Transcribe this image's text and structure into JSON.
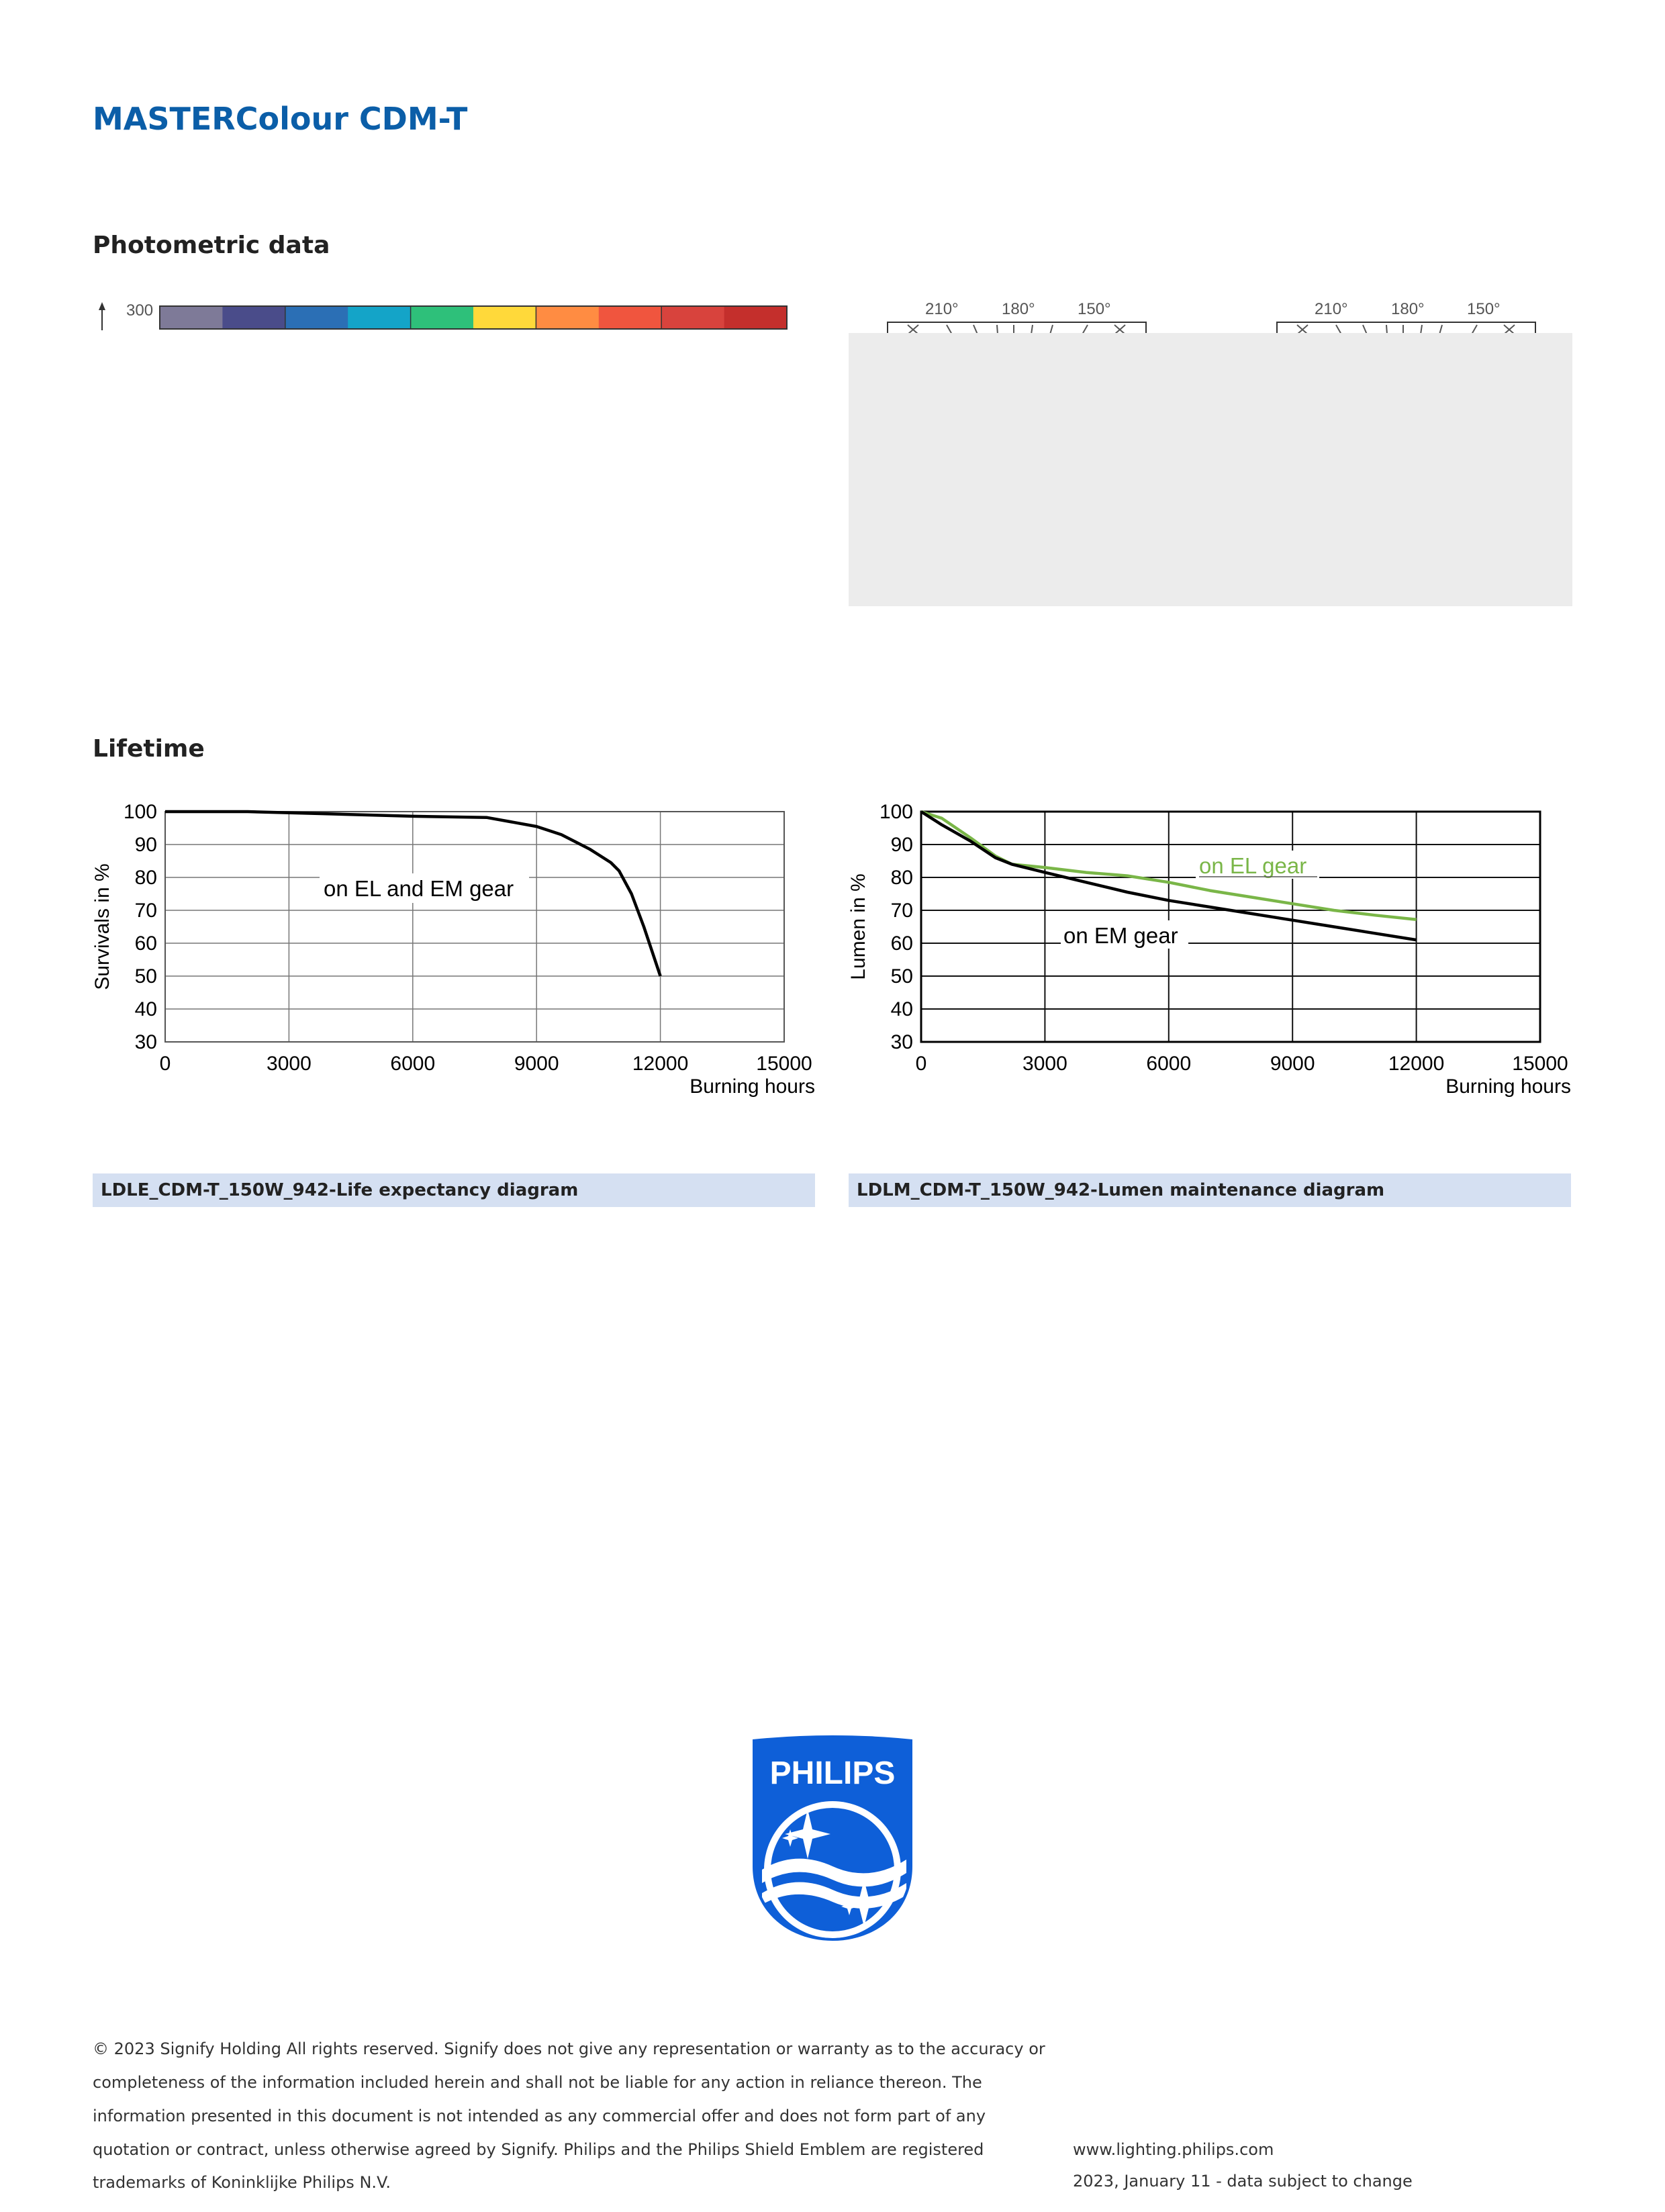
{
  "header": {
    "title": "MASTERColour CDM-T"
  },
  "photometric": {
    "title": "Photometric data",
    "colorbar": {
      "label": "300",
      "colors": [
        "#7e7a98",
        "#4a4c8a",
        "#2b6fb5",
        "#14a4c8",
        "#2ec07a",
        "#ffd93a",
        "#ff8c42",
        "#f0553e",
        "#d8433d",
        "#c42f2c"
      ]
    },
    "polar_left": {
      "angles": [
        "210°",
        "180°",
        "150°"
      ]
    },
    "polar_right": {
      "angles": [
        "210°",
        "180°",
        "150°"
      ]
    }
  },
  "lifetime": {
    "title": "Lifetime",
    "caption_left": "LDLE_CDM-T_150W_942-Life expectancy diagram",
    "caption_right": "LDLM_CDM-T_150W_942-Lumen maintenance diagram"
  },
  "chart_data": [
    {
      "type": "line",
      "ylabel": "Survivals in %",
      "xlabel": "Burning hours",
      "xlim": [
        0,
        15000
      ],
      "ylim": [
        30,
        100
      ],
      "xticks": [
        "0",
        "3000",
        "6000",
        "9000",
        "12000",
        "15000"
      ],
      "yticks": [
        "100",
        "90",
        "80",
        "70",
        "60",
        "50",
        "40",
        "30"
      ],
      "grid": true,
      "annotation": "on EL and EM gear",
      "series": [
        {
          "color": "#000000",
          "x": [
            0,
            2000,
            4000,
            6000,
            7800,
            9000,
            9600,
            10300,
            10800,
            11000,
            11300,
            11600,
            12000
          ],
          "y": [
            100,
            100,
            99.3,
            98.6,
            98.2,
            95.5,
            93,
            88.5,
            84.5,
            82,
            75,
            65,
            50
          ]
        }
      ]
    },
    {
      "type": "line",
      "ylabel": "Lumen in %",
      "xlabel": "Burning hours",
      "xlim": [
        0,
        15000
      ],
      "ylim": [
        30,
        100
      ],
      "xticks": [
        "0",
        "3000",
        "6000",
        "9000",
        "12000",
        "15000"
      ],
      "yticks": [
        "100",
        "90",
        "80",
        "70",
        "60",
        "50",
        "40",
        "30"
      ],
      "grid": true,
      "series": [
        {
          "name": "on EL gear",
          "color": "#7ab648",
          "x": [
            0,
            500,
            1200,
            1800,
            2200,
            3000,
            4000,
            5000,
            6000,
            7000,
            8000,
            9000,
            10000,
            11000,
            12000
          ],
          "y": [
            100,
            98,
            92,
            86.5,
            84,
            83,
            81.5,
            80.5,
            78.5,
            76,
            74,
            72,
            70,
            68.5,
            67.2
          ]
        },
        {
          "name": "on EM gear",
          "color": "#000000",
          "x": [
            0,
            500,
            1200,
            1800,
            2200,
            3000,
            4000,
            5000,
            6000,
            7000,
            8000,
            9000,
            10000,
            11000,
            12000
          ],
          "y": [
            100,
            96,
            91,
            86,
            84,
            81.5,
            78.5,
            75.5,
            73,
            71,
            69,
            67,
            65,
            63,
            61
          ]
        }
      ]
    }
  ],
  "logo": {
    "text": "PHILIPS",
    "color": "#0e5fd8"
  },
  "footer": {
    "lines": [
      "© 2023 Signify Holding All rights reserved. Signify does not give any representation or warranty as to the accuracy or",
      "completeness of the information included herein and shall not be liable for any action in reliance thereon. The",
      "information presented in this document is not intended as any commercial offer and does not form part of any",
      "quotation or contract, unless otherwise agreed by Signify. Philips and the Philips Shield Emblem are registered",
      "trademarks of Koninklijke Philips N.V."
    ],
    "website": "www.lighting.philips.com",
    "date": "2023, January 11 - data subject to change"
  }
}
